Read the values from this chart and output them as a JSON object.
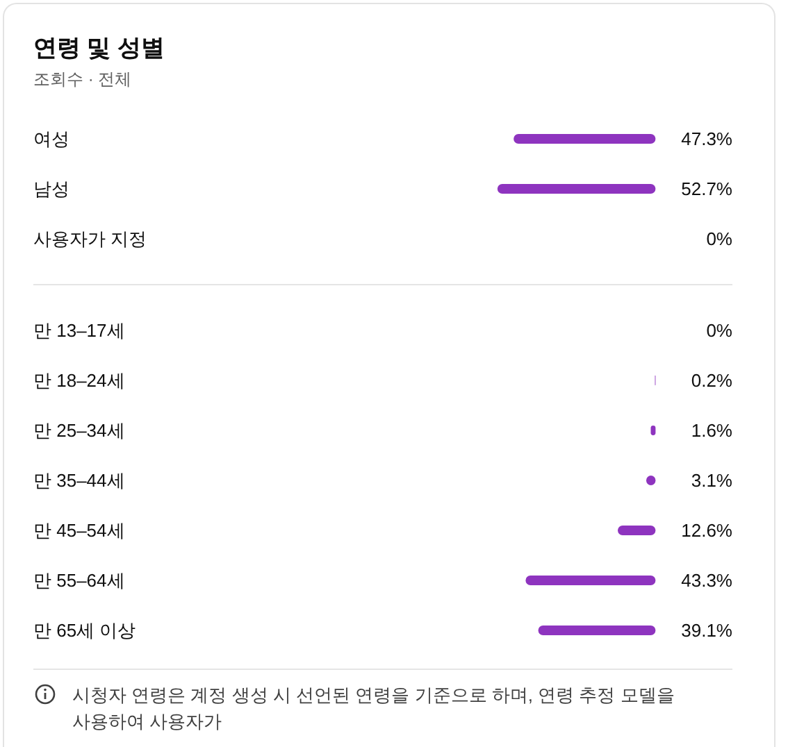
{
  "chart_data": [
    {
      "type": "bar",
      "orientation": "horizontal",
      "title": "연령 및 성별",
      "subtitle": "조회수 · 전체",
      "categories": [
        "여성",
        "남성",
        "사용자가 지정"
      ],
      "values": [
        47.3,
        52.7,
        0
      ],
      "value_labels": [
        "47.3%",
        "52.7%",
        "0%"
      ],
      "color": "#8e34bf",
      "tick_labels": "y"
    },
    {
      "type": "bar",
      "orientation": "horizontal",
      "categories": [
        "만 13–17세",
        "만 18–24세",
        "만 25–34세",
        "만 35–44세",
        "만 45–54세",
        "만 55–64세",
        "만 65세 이상"
      ],
      "values": [
        0,
        0.2,
        1.6,
        3.1,
        12.6,
        43.3,
        39.1
      ],
      "value_labels": [
        "0%",
        "0.2%",
        "1.6%",
        "3.1%",
        "12.6%",
        "43.3%",
        "39.1%"
      ],
      "color": "#8e34bf",
      "tick_labels": "y",
      "annotations": [
        "시청자 연령은 계정 생성 시 선언된 연령을 기준으로 하며, 연령 추정 모델을 사용하여 사용자가"
      ]
    }
  ]
}
